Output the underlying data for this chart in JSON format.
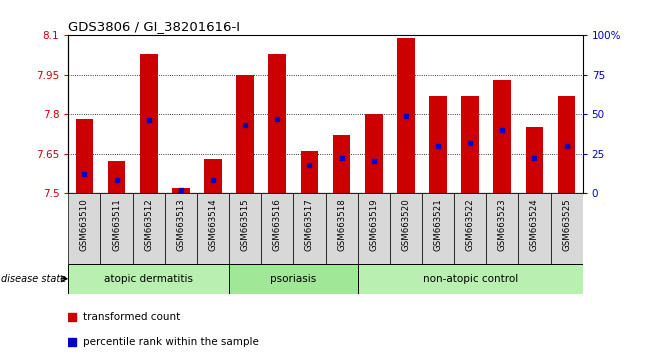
{
  "title": "GDS3806 / GI_38201616-I",
  "samples": [
    "GSM663510",
    "GSM663511",
    "GSM663512",
    "GSM663513",
    "GSM663514",
    "GSM663515",
    "GSM663516",
    "GSM663517",
    "GSM663518",
    "GSM663519",
    "GSM663520",
    "GSM663521",
    "GSM663522",
    "GSM663523",
    "GSM663524",
    "GSM663525"
  ],
  "transformed_count": [
    7.78,
    7.62,
    8.03,
    7.52,
    7.63,
    7.95,
    8.03,
    7.66,
    7.72,
    7.8,
    8.09,
    7.87,
    7.87,
    7.93,
    7.75,
    7.87
  ],
  "percentile_rank": [
    12,
    8,
    46,
    2,
    8,
    43,
    47,
    18,
    22,
    20,
    49,
    30,
    32,
    40,
    22,
    30
  ],
  "baseline": 7.5,
  "ylim_left": [
    7.5,
    8.1
  ],
  "ylim_right": [
    0,
    100
  ],
  "yticks_left": [
    7.5,
    7.65,
    7.8,
    7.95,
    8.1
  ],
  "yticks_right": [
    0,
    25,
    50,
    75,
    100
  ],
  "ytick_labels_left": [
    "7.5",
    "7.65",
    "7.8",
    "7.95",
    "8.1"
  ],
  "ytick_labels_right": [
    "0",
    "25",
    "50",
    "75",
    "100%"
  ],
  "bar_color": "#CC0000",
  "blue_color": "#0000CC",
  "group_info": [
    {
      "label": "atopic dermatitis",
      "start": 0,
      "end": 5
    },
    {
      "label": "psoriasis",
      "start": 5,
      "end": 9
    },
    {
      "label": "non-atopic control",
      "start": 9,
      "end": 16
    }
  ],
  "group_colors": [
    "#b8f0b0",
    "#a0e898",
    "#b8f0b0"
  ],
  "legend_items": [
    {
      "label": "transformed count",
      "color": "#CC0000"
    },
    {
      "label": "percentile rank within the sample",
      "color": "#0000CC"
    }
  ],
  "disease_state_label": "disease state",
  "bar_width": 0.55,
  "tick_bg_color": "#d8d8d8"
}
